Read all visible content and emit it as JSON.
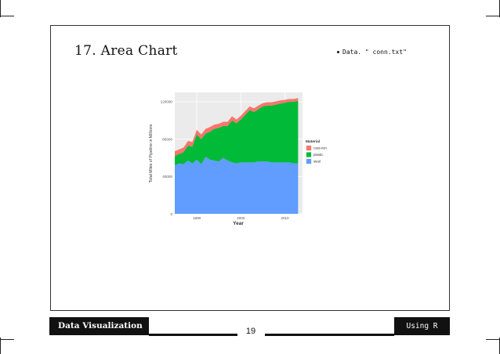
{
  "slide": {
    "title": "17. Area Chart",
    "bullet": "Data. \" conn.txt\"",
    "footer_left": "Data Visualization",
    "footer_right": "Using R",
    "page_number": "19"
  },
  "chart_data": {
    "type": "area",
    "stacked": true,
    "xlabel": "Year",
    "ylabel": "Total Miles of Pipeline in Millions",
    "xlim": [
      1985,
      2014
    ],
    "ylim": [
      0,
      130000
    ],
    "x_ticks": [
      "1990",
      "2000",
      "2010"
    ],
    "y_ticks": [
      "0",
      "40000",
      "80000",
      "120000"
    ],
    "legend_title": "Material",
    "legend_position": "right",
    "x": [
      1985,
      1986,
      1987,
      1988,
      1989,
      1990,
      1991,
      1992,
      1993,
      1994,
      1995,
      1996,
      1997,
      1998,
      1999,
      2000,
      2001,
      2002,
      2003,
      2004,
      2005,
      2006,
      2007,
      2008,
      2009,
      2010,
      2011,
      2012,
      2013
    ],
    "series": [
      {
        "name": "steel",
        "color": "#619CFF",
        "values": [
          52000,
          54000,
          53000,
          57000,
          54000,
          58000,
          53000,
          61000,
          58000,
          57000,
          56000,
          60000,
          57000,
          55000,
          54000,
          55000,
          55000,
          55000,
          55000,
          56000,
          56000,
          56000,
          55000,
          55000,
          55000,
          55000,
          55000,
          54000,
          54000
        ]
      },
      {
        "name": "plastic",
        "color": "#00BA38",
        "values": [
          10000,
          10000,
          13000,
          16000,
          18000,
          27000,
          27000,
          25000,
          30000,
          34000,
          36000,
          34000,
          37000,
          45000,
          43000,
          46000,
          51000,
          56000,
          54000,
          56000,
          59000,
          60000,
          61000,
          62000,
          63000,
          64000,
          65000,
          66000,
          67000
        ]
      },
      {
        "name": "cast-iron",
        "color": "#F8766D",
        "values": [
          5000,
          5000,
          5000,
          5000,
          5000,
          5000,
          5000,
          5000,
          5000,
          4500,
          4500,
          4500,
          4500,
          4500,
          4000,
          4000,
          4000,
          4000,
          4000,
          4000,
          3500,
          3500,
          3500,
          3500,
          3500,
          3000,
          3000,
          3000,
          3000
        ]
      }
    ],
    "legend": [
      "cast-iron",
      "plastic",
      "steel"
    ]
  }
}
